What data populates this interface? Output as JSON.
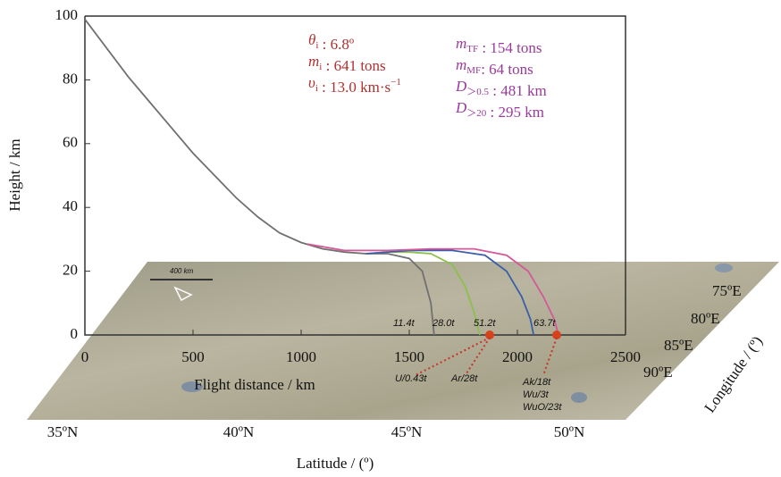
{
  "chart_data": {
    "type": "line",
    "xlabel": "Flight distance / km",
    "ylabel": "Height / km",
    "xlim": [
      0,
      2500
    ],
    "xticks": [
      0,
      500,
      1000,
      1500,
      2000,
      2500
    ],
    "ylim": [
      0,
      100
    ],
    "yticks": [
      0,
      20,
      40,
      60,
      80,
      100
    ],
    "series": [
      {
        "color": "#707070",
        "x": [
          0,
          100,
          200,
          300,
          400,
          500,
          600,
          700,
          800,
          900,
          1000,
          1100,
          1200,
          1300,
          1400,
          1500,
          1560,
          1600,
          1615
        ],
        "values": [
          99,
          90,
          81,
          73,
          65,
          57,
          50,
          43,
          37,
          32,
          29,
          27,
          26,
          25.5,
          25.5,
          24,
          20,
          10,
          0
        ]
      },
      {
        "color": "#8dbf4f",
        "x": [
          1300,
          1400,
          1500,
          1600,
          1700,
          1760,
          1800,
          1826
        ],
        "values": [
          25.5,
          26,
          26,
          25.5,
          22,
          15,
          7,
          0
        ]
      },
      {
        "color": "#3a5fa8",
        "x": [
          1300,
          1500,
          1700,
          1850,
          1950,
          2020,
          2060,
          2075
        ],
        "values": [
          25.5,
          26.5,
          26.5,
          25,
          20,
          12,
          5,
          0
        ]
      },
      {
        "color": "#d4589a",
        "x": [
          1030,
          1200,
          1400,
          1600,
          1800,
          1950,
          2050,
          2120,
          2170,
          2190
        ],
        "values": [
          28.5,
          26.5,
          26.5,
          27,
          27,
          25,
          20,
          12,
          5,
          0
        ]
      }
    ],
    "annotations_left": [
      [
        {
          "text": "θ"
        },
        {
          "sub": "i"
        },
        {
          "text": " : 6.8º"
        }
      ],
      [
        {
          "text": "m"
        },
        {
          "sub": "i"
        },
        {
          "text": " : 641 tons"
        }
      ],
      [
        {
          "text": "υ"
        },
        {
          "sub": "i"
        },
        {
          "text": " : 13.0 km·s"
        },
        {
          "sup": "−1"
        }
      ]
    ],
    "annotations_right": [
      [
        {
          "text": "m"
        },
        {
          "sub": "TF"
        },
        {
          "text": " : 154 tons"
        }
      ],
      [
        {
          "text": "m"
        },
        {
          "sub": "MF"
        },
        {
          "text": ": 64 tons"
        }
      ],
      [
        {
          "text": "D"
        },
        {
          "sub": "＞0.5"
        },
        {
          "text": " : 481 km"
        }
      ],
      [
        {
          "text": "D"
        },
        {
          "sub": "＞20"
        },
        {
          "text": " : 295 km"
        }
      ]
    ],
    "fragment_labels": [
      "11.4t",
      "28.0t",
      "51.2t",
      "63.7t"
    ],
    "map_labels": [
      "U/0.43t",
      "Ar/28t",
      "Ak/18t",
      "Wu/3t",
      "WuO/23t",
      "400 km"
    ],
    "latitude_label": "Latitude / (º)",
    "latitudes": [
      "35ºN",
      "40ºN",
      "45ºN",
      "50ºN"
    ],
    "longitude_label": "Longitude / (º)",
    "longitudes": [
      "75ºE",
      "80ºE",
      "85ºE",
      "90ºE"
    ]
  }
}
